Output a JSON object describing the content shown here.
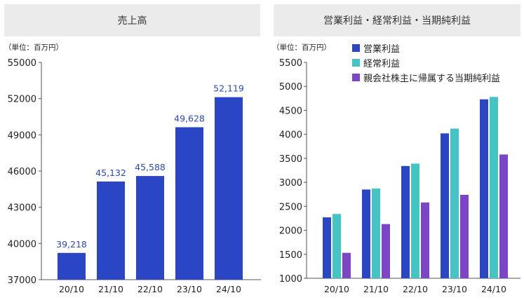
{
  "chart_data": [
    {
      "type": "bar",
      "title": "売上高",
      "unit_label": "（単位：百万円）",
      "categories": [
        "20/10",
        "21/10",
        "22/10",
        "23/10",
        "24/10"
      ],
      "values": [
        39218,
        45132,
        45588,
        49628,
        52119
      ],
      "data_labels": [
        "39,218",
        "45,132",
        "45,588",
        "49,628",
        "52,119"
      ],
      "ylim": [
        37000,
        55000
      ],
      "yticks": [
        37000,
        40000,
        43000,
        46000,
        49000,
        52000,
        55000
      ],
      "colors": {
        "bar": "#2a46c4",
        "label": "#2a46c4"
      },
      "grid": false
    },
    {
      "type": "bar",
      "title": "営業利益・経常利益・当期純利益",
      "unit_label": "（単位：百万円）",
      "categories": [
        "20/10",
        "21/10",
        "22/10",
        "23/10",
        "24/10"
      ],
      "series": [
        {
          "name": "営業利益",
          "values": [
            2270,
            2850,
            3340,
            4020,
            4730
          ],
          "color": "#2a46c4"
        },
        {
          "name": "経常利益",
          "values": [
            2340,
            2870,
            3390,
            4120,
            4780
          ],
          "color": "#45c4c6"
        },
        {
          "name": "親会社株主に帰属する当期純利益",
          "values": [
            1530,
            2130,
            2580,
            2740,
            3580
          ],
          "color": "#7c45c8"
        }
      ],
      "ylim": [
        1000,
        5500
      ],
      "yticks": [
        1000,
        1500,
        2000,
        2500,
        3000,
        3500,
        4000,
        4500,
        5000,
        5500
      ],
      "legend_position": "top",
      "grid": false
    }
  ]
}
